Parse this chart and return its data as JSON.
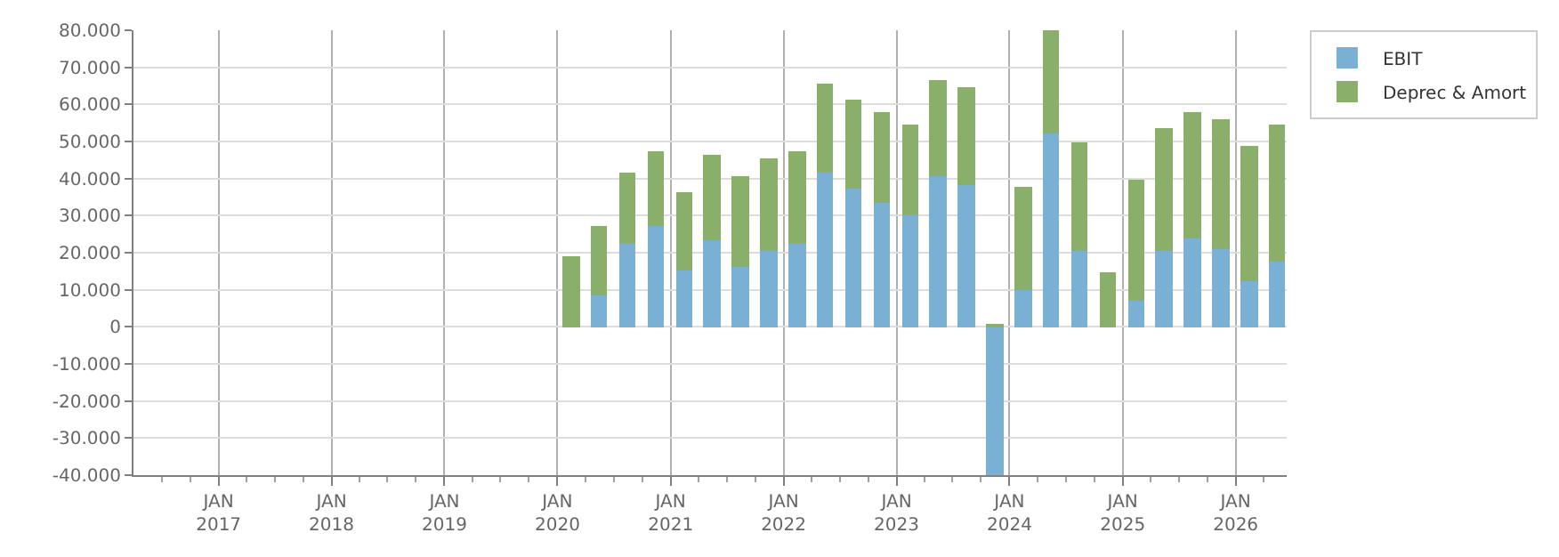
{
  "chart_data": {
    "type": "bar",
    "stacked": true,
    "x": [
      "2020-02-15",
      "2020-05-15",
      "2020-08-15",
      "2020-11-15",
      "2021-02-15",
      "2021-05-15",
      "2021-08-15",
      "2021-11-15",
      "2022-02-15",
      "2022-05-15",
      "2022-08-15",
      "2022-11-15",
      "2023-02-15",
      "2023-05-15",
      "2023-08-15",
      "2023-11-15",
      "2024-02-15",
      "2024-05-15",
      "2024-08-15",
      "2024-11-15",
      "2025-02-15",
      "2025-05-15",
      "2025-08-15",
      "2025-11-15",
      "2026-02-15",
      "2026-05-15"
    ],
    "series": [
      {
        "name": "EBIT",
        "color": "#7ab0d4",
        "values": [
          null,
          8500,
          22200,
          27200,
          15300,
          23500,
          16200,
          20500,
          22500,
          41700,
          37100,
          33300,
          30000,
          40600,
          38200,
          -40000,
          10100,
          52100,
          20300,
          null,
          6900,
          20300,
          24000,
          21200,
          12400,
          17500
        ]
      },
      {
        "name": "Deprec & Amort",
        "color": "#8aaf6a",
        "values": [
          19000,
          18800,
          19500,
          20100,
          20800,
          22800,
          24600,
          24900,
          24800,
          24100,
          24100,
          24800,
          24400,
          26200,
          26300,
          400,
          27700,
          27900,
          29500,
          14700,
          32700,
          33200,
          34100,
          34600,
          36400,
          37300
        ]
      }
    ],
    "xlim": [
      "2016-04-01",
      "2026-06-15"
    ],
    "xticks": [
      {
        "value": "2017-01-01",
        "label": "JAN\n2017"
      },
      {
        "value": "2018-01-01",
        "label": "JAN\n2018"
      },
      {
        "value": "2019-01-01",
        "label": "JAN\n2019"
      },
      {
        "value": "2020-01-01",
        "label": "JAN\n2020"
      },
      {
        "value": "2021-01-01",
        "label": "JAN\n2021"
      },
      {
        "value": "2022-01-01",
        "label": "JAN\n2022"
      },
      {
        "value": "2023-01-01",
        "label": "JAN\n2023"
      },
      {
        "value": "2024-01-01",
        "label": "JAN\n2024"
      },
      {
        "value": "2025-01-01",
        "label": "JAN\n2025"
      },
      {
        "value": "2026-01-01",
        "label": "JAN\n2026"
      },
      {
        "value": "2016-07-01",
        "label": null
      },
      {
        "value": "2016-10-01",
        "label": null
      },
      {
        "value": "2017-04-01",
        "label": null
      },
      {
        "value": "2017-07-01",
        "label": null
      },
      {
        "value": "2017-10-01",
        "label": null
      },
      {
        "value": "2018-04-01",
        "label": null
      },
      {
        "value": "2018-07-01",
        "label": null
      },
      {
        "value": "2018-10-01",
        "label": null
      },
      {
        "value": "2019-04-01",
        "label": null
      },
      {
        "value": "2019-07-01",
        "label": null
      },
      {
        "value": "2019-10-01",
        "label": null
      },
      {
        "value": "2020-04-01",
        "label": null
      },
      {
        "value": "2020-07-01",
        "label": null
      },
      {
        "value": "2020-10-01",
        "label": null
      },
      {
        "value": "2021-04-01",
        "label": null
      },
      {
        "value": "2021-07-01",
        "label": null
      },
      {
        "value": "2021-10-01",
        "label": null
      },
      {
        "value": "2022-04-01",
        "label": null
      },
      {
        "value": "2022-07-01",
        "label": null
      },
      {
        "value": "2022-10-01",
        "label": null
      },
      {
        "value": "2023-04-01",
        "label": null
      },
      {
        "value": "2023-07-01",
        "label": null
      },
      {
        "value": "2023-10-01",
        "label": null
      },
      {
        "value": "2024-04-01",
        "label": null
      },
      {
        "value": "2024-07-01",
        "label": null
      },
      {
        "value": "2024-10-01",
        "label": null
      },
      {
        "value": "2025-04-01",
        "label": null
      },
      {
        "value": "2025-07-01",
        "label": null
      },
      {
        "value": "2025-10-01",
        "label": null
      },
      {
        "value": "2026-04-01",
        "label": null
      }
    ],
    "ylim": [
      -40000,
      80000
    ],
    "yticks": [
      {
        "value": -40000,
        "label": "-40.000"
      },
      {
        "value": -30000,
        "label": "-30.000"
      },
      {
        "value": -20000,
        "label": "-20.000"
      },
      {
        "value": -10000,
        "label": "-10.000"
      },
      0,
      {
        "value": 10000,
        "label": "10.000"
      },
      {
        "value": 20000,
        "label": "20.000"
      },
      {
        "value": 30000,
        "label": "30.000"
      },
      {
        "value": 40000,
        "label": "40.000"
      },
      {
        "value": 50000,
        "label": "50.000"
      },
      {
        "value": 60000,
        "label": "60.000"
      },
      {
        "value": 70000,
        "label": "70.000"
      },
      {
        "value": 80000,
        "label": "80.000"
      }
    ],
    "grid": true,
    "legend": "top right"
  }
}
